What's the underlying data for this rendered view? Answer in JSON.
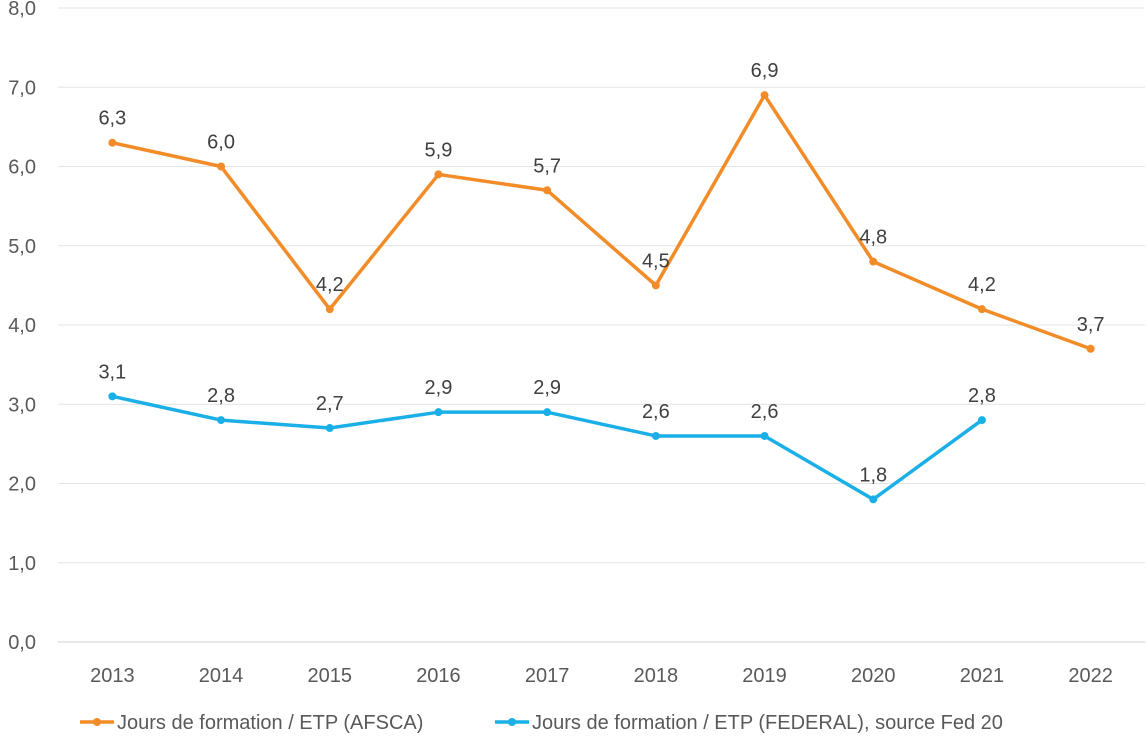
{
  "chart_data": {
    "type": "line",
    "title": "",
    "xlabel": "",
    "ylabel": "",
    "categories": [
      "2013",
      "2014",
      "2015",
      "2016",
      "2017",
      "2018",
      "2019",
      "2020",
      "2021",
      "2022"
    ],
    "ylim": [
      0,
      8
    ],
    "yticks": [
      "0,0",
      "1,0",
      "2,0",
      "3,0",
      "4,0",
      "5,0",
      "6,0",
      "7,0",
      "8,0"
    ],
    "grid": true,
    "legend_position": "bottom",
    "series": [
      {
        "name": "Jours de formation / ETP (AFSCA)",
        "color": "#F28C28",
        "values": [
          6.3,
          6.0,
          4.2,
          5.9,
          5.7,
          4.5,
          6.9,
          4.8,
          4.2,
          3.7
        ],
        "labels": [
          "6,3",
          "6,0",
          "4,2",
          "5,9",
          "5,7",
          "4,5",
          "6,9",
          "4,8",
          "4,2",
          "3,7"
        ]
      },
      {
        "name": "Jours de formation / ETP (FEDERAL), source Fed 20",
        "color": "#1AAFE6",
        "values": [
          3.1,
          2.8,
          2.7,
          2.9,
          2.9,
          2.6,
          2.6,
          1.8,
          2.8,
          null
        ],
        "labels": [
          "3,1",
          "2,8",
          "2,7",
          "2,9",
          "2,9",
          "2,6",
          "2,6",
          "1,8",
          "2,8",
          null
        ]
      }
    ]
  }
}
